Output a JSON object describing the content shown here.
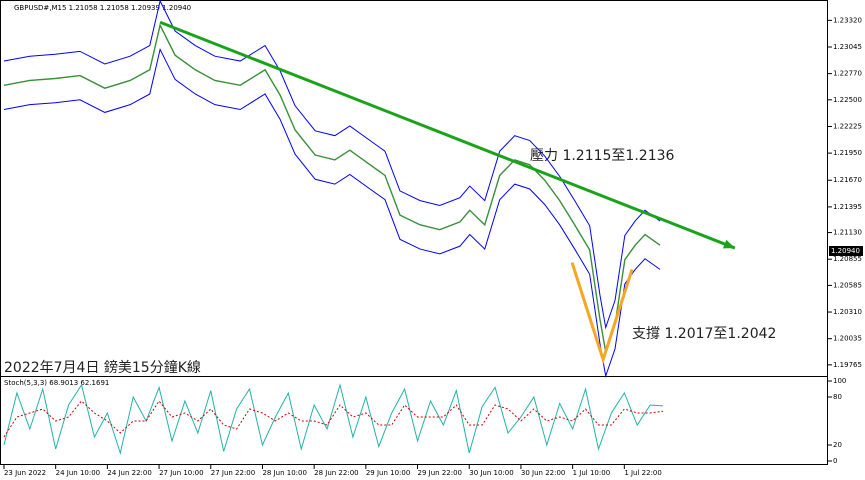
{
  "chart_data": [
    {
      "type": "line",
      "title": "GBPUSD#,M15  1.21058 1.21058 1.20939 1.20940",
      "xlim": [
        -0.077,
        15.94
      ],
      "ylim": [
        1.1965,
        1.2353
      ],
      "yticks": [
        {
          "value": 1.2332,
          "label": "1.23320"
        },
        {
          "value": 1.23045,
          "label": "1.23045"
        },
        {
          "value": 1.2277,
          "label": "1.22770"
        },
        {
          "value": 1.225,
          "label": "1.22500"
        },
        {
          "value": 1.22225,
          "label": "1.22225"
        },
        {
          "value": 1.2195,
          "label": "1.21950"
        },
        {
          "value": 1.2167,
          "label": "1.21670"
        },
        {
          "value": 1.21395,
          "label": "1.21395"
        },
        {
          "value": 1.2113,
          "label": "1.21130"
        },
        {
          "value": 1.20855,
          "label": "1.20855"
        },
        {
          "value": 1.20585,
          "label": "1.20585"
        },
        {
          "value": 1.2031,
          "label": "1.20310"
        },
        {
          "value": 1.20035,
          "label": "1.20035"
        },
        {
          "value": 1.19765,
          "label": "1.19765"
        }
      ],
      "current_price": {
        "value": 1.2094,
        "label": "1.20940"
      },
      "x": [
        0,
        0.5,
        0.99,
        1.47,
        1.95,
        2.44,
        2.82,
        3.02,
        3.31,
        3.7,
        4.08,
        4.57,
        5.05,
        5.34,
        5.63,
        6.02,
        6.4,
        6.69,
        7.08,
        7.37,
        7.66,
        8.05,
        8.43,
        8.82,
        9.01,
        9.3,
        9.59,
        9.88,
        10.17,
        10.46,
        10.75,
        11.04,
        11.33,
        11.53,
        11.64,
        11.82,
        12.01,
        12.21,
        12.4,
        12.69
      ],
      "series": [
        {
          "color": "#0000ff",
          "values": [
            1.229,
            1.2295,
            1.2297,
            1.23,
            1.2287,
            1.2295,
            1.2306,
            1.2352,
            1.2321,
            1.2306,
            1.2295,
            1.229,
            1.2306,
            1.228,
            1.2244,
            1.2218,
            1.2213,
            1.2223,
            1.2208,
            1.2197,
            1.2156,
            1.2146,
            1.2141,
            1.2149,
            1.2161,
            1.2146,
            1.2197,
            1.2213,
            1.2208,
            1.2192,
            1.2171,
            1.2146,
            1.212,
            1.2048,
            1.2015,
            1.2043,
            1.211,
            1.2125,
            1.2136,
            1.2125
          ]
        },
        {
          "color": "#0000ff",
          "values": [
            1.224,
            1.2245,
            1.2247,
            1.225,
            1.2237,
            1.2245,
            1.2256,
            1.2302,
            1.2271,
            1.2256,
            1.2245,
            1.224,
            1.2256,
            1.223,
            1.2194,
            1.2168,
            1.2163,
            1.2173,
            1.2158,
            1.2147,
            1.2106,
            1.2096,
            1.2091,
            1.2099,
            1.2111,
            1.2096,
            1.2147,
            1.2163,
            1.2158,
            1.2142,
            1.2121,
            1.2096,
            1.207,
            1.1998,
            1.1965,
            1.1993,
            1.206,
            1.2075,
            1.2086,
            1.2075
          ]
        },
        {
          "color": "#3a8f3a",
          "values": [
            1.2265,
            1.227,
            1.2272,
            1.2275,
            1.2262,
            1.227,
            1.2281,
            1.2327,
            1.2296,
            1.2281,
            1.227,
            1.2265,
            1.2281,
            1.2255,
            1.2219,
            1.2193,
            1.2188,
            1.2198,
            1.2183,
            1.2172,
            1.2131,
            1.2121,
            1.2116,
            1.2124,
            1.2136,
            1.2121,
            1.2172,
            1.2188,
            1.2183,
            1.2167,
            1.2146,
            1.2121,
            1.2095,
            1.2023,
            1.199,
            1.2018,
            1.2085,
            1.21,
            1.2111,
            1.21
          ]
        }
      ],
      "trend_line": {
        "color": "#1aa31a",
        "x": [
          3.02,
          14.14
        ],
        "y": [
          1.233,
          1.2097
        ]
      },
      "v_line": {
        "color": "#f5a623",
        "x": [
          10.99,
          11.59,
          12.15
        ],
        "y": [
          1.2082,
          1.1982,
          1.2075
        ]
      },
      "annotations": [
        "壓力 1.2115至1.2136",
        "支撐 1.2017至1.2042",
        "2022年7月4日 鎊美15分鐘K線"
      ]
    },
    {
      "type": "line",
      "title": "Stoch(5,3,3) 68.9013 62.1691",
      "xlim": [
        -0.077,
        15.94
      ],
      "ylim": [
        -5,
        105
      ],
      "yticks": [
        100,
        80,
        20,
        0
      ],
      "xticks": [
        {
          "value": 0,
          "label": "23 Jun 2022"
        },
        {
          "value": 1,
          "label": "24 Jun 10:00"
        },
        {
          "value": 2,
          "label": "24 Jun 22:00"
        },
        {
          "value": 3,
          "label": "27 Jun 10:00"
        },
        {
          "value": 4,
          "label": "27 Jun 22:00"
        },
        {
          "value": 5,
          "label": "28 Jun 10:00"
        },
        {
          "value": 6,
          "label": "28 Jun 22:00"
        },
        {
          "value": 7,
          "label": "29 Jun 10:00"
        },
        {
          "value": 8,
          "label": "29 Jun 22:00"
        },
        {
          "value": 9,
          "label": "30 Jun 10:00"
        },
        {
          "value": 10,
          "label": "30 Jun 22:00"
        },
        {
          "value": 11,
          "label": "1 Jul 10:00"
        },
        {
          "value": 12,
          "label": "1 Jul 22:00"
        }
      ],
      "x": [
        0,
        0.25,
        0.5,
        0.75,
        1,
        1.25,
        1.5,
        1.75,
        2,
        2.25,
        2.5,
        2.75,
        3,
        3.25,
        3.5,
        3.75,
        4,
        4.25,
        4.5,
        4.75,
        5,
        5.25,
        5.5,
        5.75,
        6,
        6.25,
        6.5,
        6.75,
        7,
        7.25,
        7.5,
        7.75,
        8,
        8.25,
        8.5,
        8.75,
        9,
        9.25,
        9.5,
        9.75,
        10,
        10.25,
        10.5,
        10.75,
        11,
        11.25,
        11.5,
        11.75,
        12,
        12.25,
        12.5,
        12.75
      ],
      "series": [
        {
          "color": "#20b2aa",
          "values": [
            20,
            85,
            40,
            90,
            15,
            70,
            95,
            30,
            60,
            10,
            80,
            50,
            92,
            25,
            75,
            35,
            88,
            12,
            65,
            90,
            20,
            55,
            85,
            15,
            70,
            40,
            95,
            30,
            80,
            18,
            60,
            90,
            25,
            75,
            45,
            88,
            10,
            68,
            92,
            35,
            55,
            80,
            20,
            72,
            40,
            90,
            15,
            60,
            85,
            45,
            70,
            68.9013
          ]
        },
        {
          "color": "#d00000",
          "values": [
            30,
            55,
            60,
            65,
            50,
            55,
            75,
            60,
            50,
            35,
            50,
            50,
            75,
            55,
            60,
            50,
            65,
            45,
            40,
            65,
            60,
            50,
            60,
            50,
            50,
            45,
            70,
            55,
            60,
            45,
            45,
            70,
            55,
            55,
            55,
            70,
            45,
            45,
            70,
            65,
            50,
            65,
            50,
            55,
            50,
            65,
            45,
            45,
            65,
            60,
            60,
            62.1691
          ]
        }
      ]
    }
  ]
}
